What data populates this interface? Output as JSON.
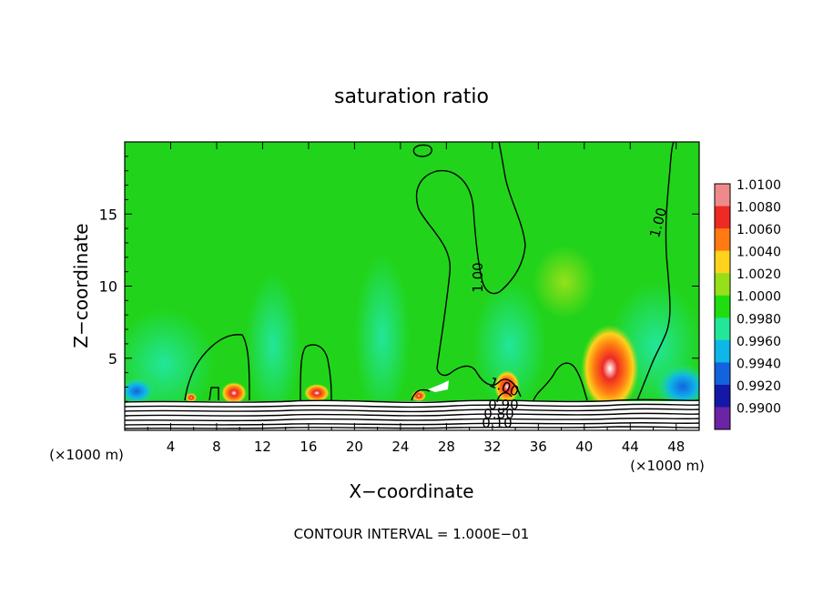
{
  "chart_data": {
    "type": "heatmap",
    "title": "saturation ratio",
    "xlabel": "X−coordinate",
    "ylabel": "Z−coordinate",
    "x_unit_left": "(×1000 m)",
    "x_unit_right": "(×1000 m)",
    "footer": "CONTOUR INTERVAL = 1.000E−01",
    "xlim": [
      0,
      50
    ],
    "ylim": [
      0,
      20
    ],
    "x_ticks": [
      4,
      8,
      12,
      16,
      20,
      24,
      28,
      32,
      36,
      40,
      44,
      48
    ],
    "y_ticks": [
      5,
      10,
      15
    ],
    "colorbar": {
      "labels": [
        "1.0100",
        "1.0080",
        "1.0060",
        "1.0040",
        "1.0020",
        "1.0000",
        "0.9980",
        "0.9960",
        "0.9940",
        "0.9920",
        "0.9900"
      ],
      "values": [
        1.01,
        1.008,
        1.006,
        1.004,
        1.002,
        1.0,
        0.998,
        0.996,
        0.994,
        0.992,
        0.99
      ],
      "colors": [
        "#f08a8a",
        "#ee2a24",
        "#ff7a12",
        "#ffd21c",
        "#96e01a",
        "#1fdd10",
        "#22e69a",
        "#0fb6e8",
        "#1463de",
        "#1418a6",
        "#6b24a4"
      ]
    },
    "contour_labels": [
      "1.00",
      "1.00",
      "1.00",
      "0.90",
      "0.80",
      "0.10"
    ],
    "background_color": "#21d41b",
    "contour_color": "#000000"
  }
}
